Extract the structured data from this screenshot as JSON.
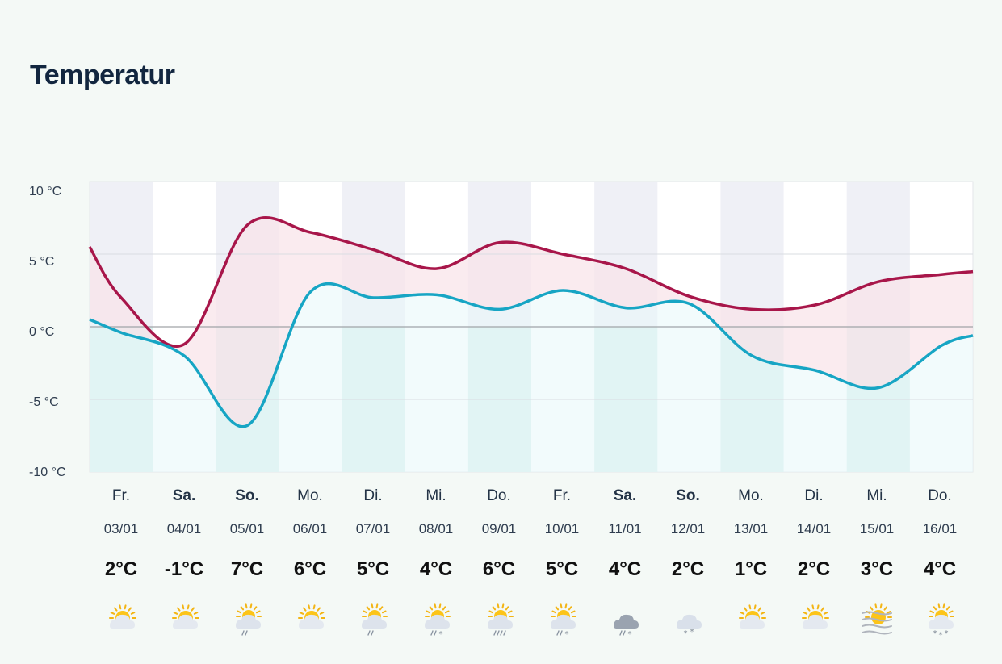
{
  "title": "Temperatur",
  "chart_data": {
    "type": "area",
    "y_unit": "°C",
    "ylim": [
      -10,
      10
    ],
    "yticks": [
      {
        "value": 10,
        "label": "10 °C"
      },
      {
        "value": 5,
        "label": "5 °C"
      },
      {
        "value": 0,
        "label": "0 °C"
      },
      {
        "value": -5,
        "label": "-5 °C"
      },
      {
        "value": -10,
        "label": "-10 °C"
      }
    ],
    "grid": true,
    "colors": {
      "max_line": "#a8164a",
      "min_line": "#17a5c4",
      "band_fill": "#f8e4ea",
      "below_fill": "#e8f8fa",
      "stripe": "#eff0f6",
      "stripe_below": "#d9efed",
      "grid": "#d9dde2",
      "zero_line": "#a0a4a8"
    },
    "series": [
      {
        "key": "max",
        "x": [
          0,
          0.5,
          1.5,
          2.5,
          3.5,
          4.5,
          5.5,
          6.5,
          7.5,
          8.5,
          9.5,
          10.5,
          11.5,
          12.5,
          13.5,
          14
        ],
        "values": [
          5.5,
          2.0,
          -1.2,
          7.0,
          6.5,
          5.3,
          4.0,
          5.8,
          5.0,
          4.0,
          2.1,
          1.2,
          1.5,
          3.1,
          3.6,
          3.8
        ]
      },
      {
        "key": "min",
        "x": [
          0,
          0.5,
          1.5,
          2.5,
          3.5,
          4.5,
          5.5,
          6.5,
          7.5,
          8.5,
          9.5,
          10.5,
          11.5,
          12.5,
          13.5,
          14
        ],
        "values": [
          0.5,
          -0.4,
          -2.0,
          -6.8,
          2.4,
          2.0,
          2.2,
          1.2,
          2.5,
          1.3,
          1.6,
          -2.0,
          -3.0,
          -4.2,
          -1.3,
          -0.6
        ]
      }
    ]
  },
  "days": [
    {
      "name": "Fr.",
      "date": "03/01",
      "temp": "2°C",
      "weekend": false,
      "icon": "sun-cloud-icon"
    },
    {
      "name": "Sa.",
      "date": "04/01",
      "temp": "-1°C",
      "weekend": true,
      "icon": "sun-cloud-icon"
    },
    {
      "name": "So.",
      "date": "05/01",
      "temp": "7°C",
      "weekend": true,
      "icon": "sun-cloud-rain-icon"
    },
    {
      "name": "Mo.",
      "date": "06/01",
      "temp": "6°C",
      "weekend": false,
      "icon": "sun-cloud-icon"
    },
    {
      "name": "Di.",
      "date": "07/01",
      "temp": "5°C",
      "weekend": false,
      "icon": "sun-cloud-rain-icon"
    },
    {
      "name": "Mi.",
      "date": "08/01",
      "temp": "4°C",
      "weekend": false,
      "icon": "sun-cloud-sleet-icon"
    },
    {
      "name": "Do.",
      "date": "09/01",
      "temp": "6°C",
      "weekend": false,
      "icon": "sun-cloud-heavy-rain-icon"
    },
    {
      "name": "Fr.",
      "date": "10/01",
      "temp": "5°C",
      "weekend": false,
      "icon": "sun-cloud-sleet-icon"
    },
    {
      "name": "Sa.",
      "date": "11/01",
      "temp": "4°C",
      "weekend": true,
      "icon": "dark-cloud-sleet-icon"
    },
    {
      "name": "So.",
      "date": "12/01",
      "temp": "2°C",
      "weekend": true,
      "icon": "cloud-snow-icon"
    },
    {
      "name": "Mo.",
      "date": "13/01",
      "temp": "1°C",
      "weekend": false,
      "icon": "sun-cloud-icon"
    },
    {
      "name": "Di.",
      "date": "14/01",
      "temp": "2°C",
      "weekend": false,
      "icon": "sun-cloud-icon"
    },
    {
      "name": "Mi.",
      "date": "15/01",
      "temp": "3°C",
      "weekend": false,
      "icon": "fog-icon"
    },
    {
      "name": "Do.",
      "date": "16/01",
      "temp": "4°C",
      "weekend": false,
      "icon": "sun-cloud-snow-icon"
    }
  ]
}
